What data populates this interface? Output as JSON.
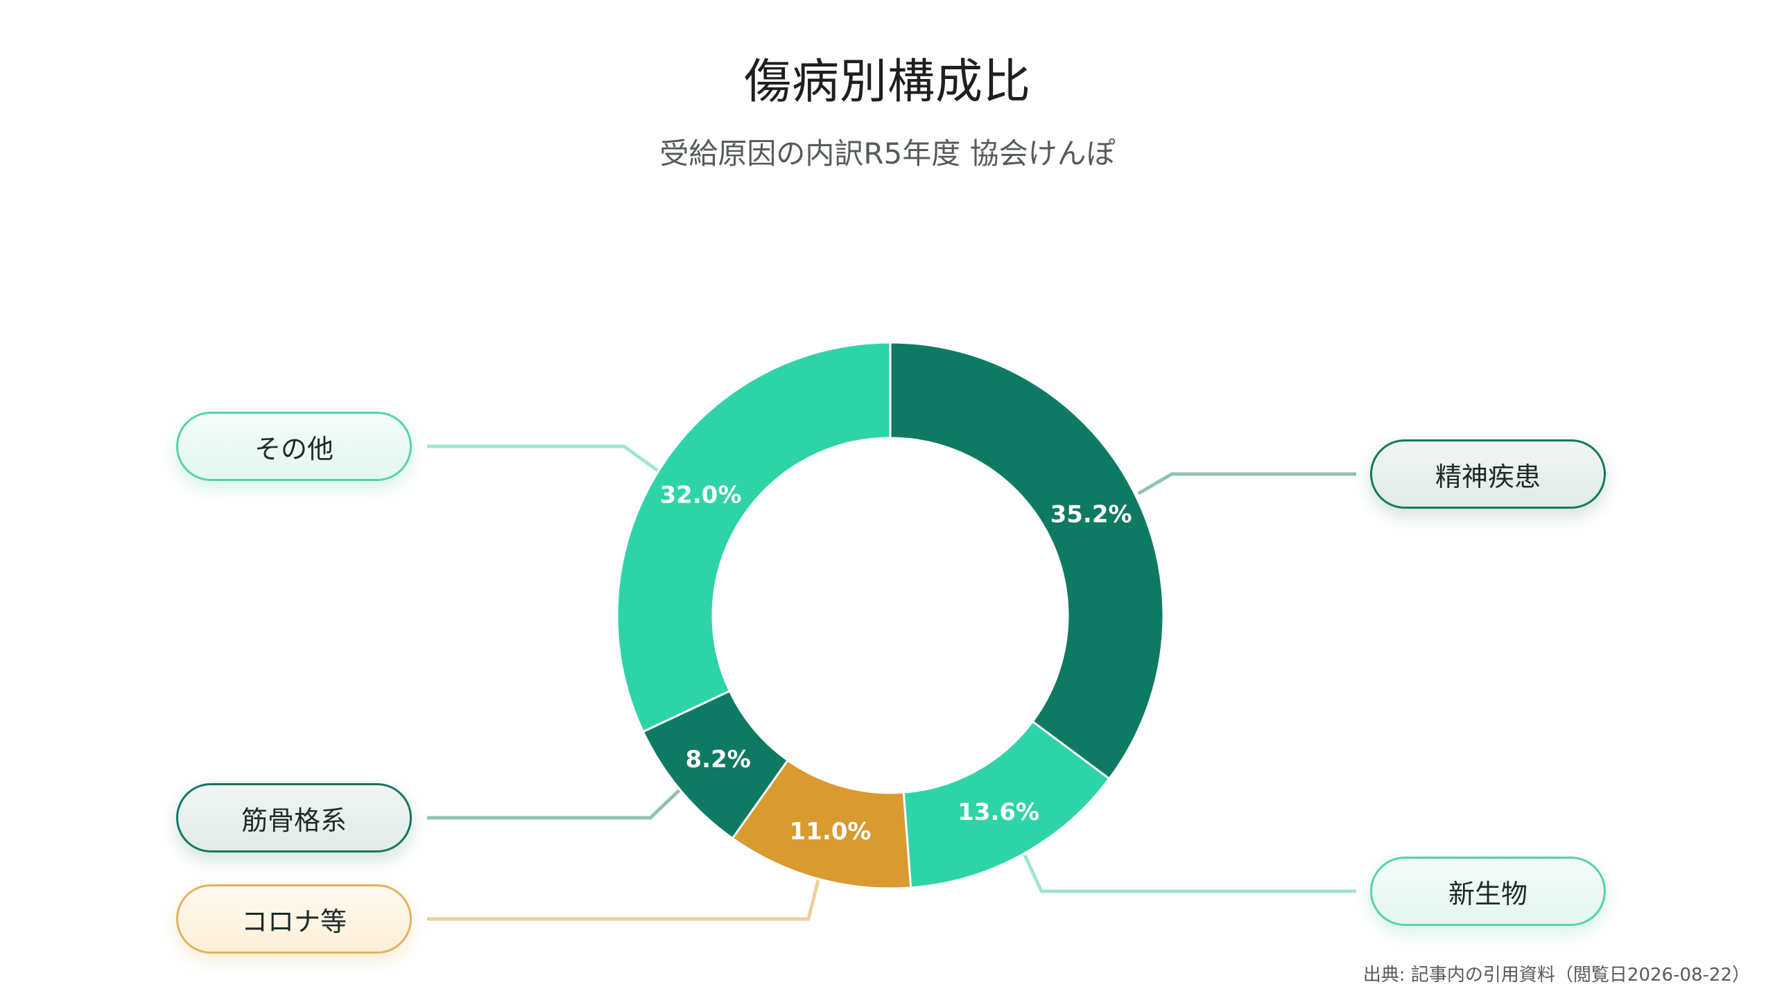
{
  "title": "傷病別構成比",
  "subtitle": "受給原因の内訳R5年度 協会けんぽ",
  "source": "出典: 記事内の引用資料（閲覧日2026-08-22）",
  "colors": {
    "dark_green": "#0f7a63",
    "mint": "#2ed4a8",
    "gold": "#d99a2f",
    "connector_mint": "#9fe6d0",
    "connector_dark": "#8fc2b4",
    "connector_gold": "#ead19a"
  },
  "labels": {
    "mental": "精神疾患",
    "neoplasm": "新生物",
    "covid": "コロナ等",
    "musculoskeletal": "筋骨格系",
    "other": "その他"
  },
  "chart_data": {
    "type": "pie",
    "title": "傷病別構成比",
    "subtitle": "受給原因の内訳R5年度 協会けんぽ",
    "donut": true,
    "unit": "%",
    "slices": [
      {
        "label": "精神疾患",
        "value": 35.2,
        "display": "35.2%",
        "color": "#0f7a63"
      },
      {
        "label": "新生物",
        "value": 13.6,
        "display": "13.6%",
        "color": "#2ed4a8"
      },
      {
        "label": "コロナ等",
        "value": 11.0,
        "display": "11.0%",
        "color": "#d99a2f"
      },
      {
        "label": "筋骨格系",
        "value": 8.2,
        "display": "8.2%",
        "color": "#0f7a63"
      },
      {
        "label": "その他",
        "value": 32.0,
        "display": "32.0%",
        "color": "#2ed4a8"
      }
    ]
  }
}
